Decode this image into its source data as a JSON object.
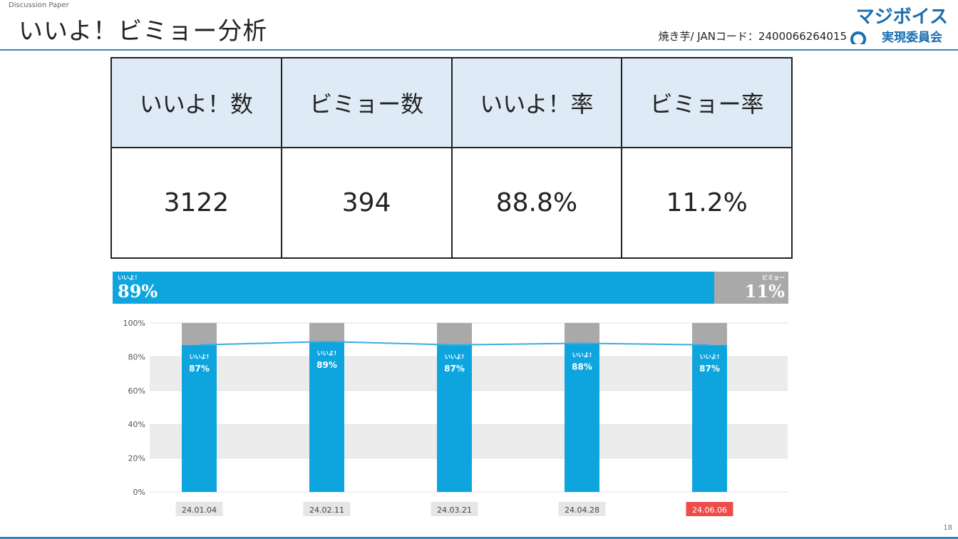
{
  "header": {
    "kicker": "Discussion Paper",
    "title": "いいよ！ビミョー分析",
    "product_info": "焼き芋/ JANコード：2400066264015",
    "logo_line1": "マジボイス",
    "logo_line2": "実現委員会"
  },
  "summary_table": {
    "headers": [
      "いいよ！数",
      "ビミョー数",
      "いいよ！率",
      "ビミョー率"
    ],
    "values": [
      "3122",
      "394",
      "88.8%",
      "11.2%"
    ]
  },
  "ratio_bar": {
    "good_label": "いいよ！",
    "good_value": "89%",
    "bad_label": "ビミョー",
    "bad_value": "11%",
    "good_fraction": 0.89
  },
  "chart_data": {
    "type": "bar",
    "categories": [
      "24.01.04",
      "24.02.11",
      "24.03.21",
      "24.04.28",
      "24.06.06"
    ],
    "series": [
      {
        "values": [
          87,
          89,
          87,
          88,
          87
        ]
      },
      {
        "values": [
          13,
          11,
          13,
          12,
          13
        ]
      }
    ],
    "bar_label": "いいよ!",
    "y_ticks": [
      "0%",
      "20%",
      "40%",
      "60%",
      "80%",
      "100%"
    ],
    "ylim": [
      0,
      100
    ],
    "overlay_line": "line connecting いいよ! percentages",
    "highlight_category": "24.06.06",
    "colors": {
      "good": "#0ea5df",
      "bad": "#a9a9a9",
      "line": "#3aaee0",
      "highlight": "#ee4b4b",
      "band": "#ececec"
    }
  },
  "footer": {
    "page_number": "18"
  }
}
